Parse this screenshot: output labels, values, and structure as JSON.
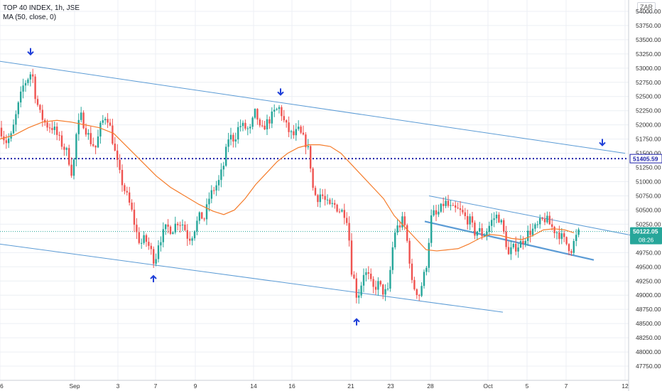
{
  "legend": {
    "symbol": "TOP 40 INDEX, 1h, JSE",
    "indicator": "MA (50, close, 0)"
  },
  "currency_badge": "ZAR",
  "price_labels": {
    "resistance_level": "51405.59",
    "last_price": "50122.05",
    "countdown": "08:26"
  },
  "colors": {
    "up": "#26a69a",
    "down": "#ef5350",
    "ma": "#f57c2b",
    "channel": "#5b9bd5",
    "arrow": "#1f3fd8",
    "dotted_level": "#1a1fa8",
    "last_price_bg": "#26a69a",
    "grid": "#eceff4"
  },
  "icons": [
    "down-arrow-marker-icon",
    "up-arrow-marker-icon"
  ],
  "chart_data": {
    "type": "candlestick",
    "title": "TOP 40 INDEX, 1h, JSE",
    "xlabel": "",
    "ylabel": "",
    "ylim": [
      47500,
      54200
    ],
    "grid": true,
    "y_ticks": [
      47750,
      48000,
      48250,
      48500,
      48750,
      49000,
      49250,
      49500,
      49750,
      50000,
      50250,
      50500,
      50750,
      51000,
      51250,
      51500,
      51750,
      52000,
      52250,
      52500,
      52750,
      53000,
      53250,
      53500,
      53750,
      54000
    ],
    "x_ticks": [
      {
        "label": "26",
        "t": 0
      },
      {
        "label": "Sep",
        "t": 105
      },
      {
        "label": "3",
        "t": 166
      },
      {
        "label": "7",
        "t": 219
      },
      {
        "label": "9",
        "t": 275
      },
      {
        "label": "14",
        "t": 357
      },
      {
        "label": "16",
        "t": 411
      },
      {
        "label": "21",
        "t": 494
      },
      {
        "label": "23",
        "t": 550
      },
      {
        "label": "28",
        "t": 606
      },
      {
        "label": "Oct",
        "t": 687
      },
      {
        "label": "5",
        "t": 742
      },
      {
        "label": "7",
        "t": 797
      },
      {
        "label": "12",
        "t": 880
      }
    ],
    "close_path": [
      [
        0,
        51950
      ],
      [
        8,
        51700
      ],
      [
        16,
        51800
      ],
      [
        25,
        52300
      ],
      [
        33,
        52700
      ],
      [
        38,
        52800
      ],
      [
        45,
        52950
      ],
      [
        50,
        52500
      ],
      [
        56,
        52200
      ],
      [
        65,
        52000
      ],
      [
        75,
        51950
      ],
      [
        85,
        51700
      ],
      [
        95,
        51500
      ],
      [
        102,
        51100
      ],
      [
        108,
        51900
      ],
      [
        114,
        52150
      ],
      [
        120,
        51950
      ],
      [
        128,
        51700
      ],
      [
        135,
        51600
      ],
      [
        142,
        52000
      ],
      [
        150,
        52200
      ],
      [
        156,
        51900
      ],
      [
        162,
        51500
      ],
      [
        168,
        51150
      ],
      [
        174,
        50900
      ],
      [
        180,
        50700
      ],
      [
        186,
        50450
      ],
      [
        192,
        50100
      ],
      [
        198,
        49900
      ],
      [
        204,
        50000
      ],
      [
        210,
        49850
      ],
      [
        215,
        49700
      ],
      [
        218,
        49550
      ],
      [
        222,
        49900
      ],
      [
        228,
        50050
      ],
      [
        235,
        50200
      ],
      [
        242,
        50150
      ],
      [
        250,
        50300
      ],
      [
        258,
        50250
      ],
      [
        265,
        50000
      ],
      [
        270,
        50050
      ],
      [
        276,
        50250
      ],
      [
        282,
        50400
      ],
      [
        288,
        50350
      ],
      [
        294,
        50700
      ],
      [
        300,
        50850
      ],
      [
        308,
        51000
      ],
      [
        315,
        51300
      ],
      [
        322,
        51800
      ],
      [
        330,
        51750
      ],
      [
        337,
        52000
      ],
      [
        345,
        51950
      ],
      [
        352,
        51900
      ],
      [
        360,
        52250
      ],
      [
        367,
        51850
      ],
      [
        373,
        52000
      ],
      [
        380,
        52100
      ],
      [
        388,
        52250
      ],
      [
        394,
        52300
      ],
      [
        400,
        52050
      ],
      [
        406,
        51900
      ],
      [
        412,
        51800
      ],
      [
        420,
        51900
      ],
      [
        427,
        51750
      ],
      [
        432,
        51650
      ],
      [
        436,
        51450
      ],
      [
        440,
        50900
      ],
      [
        446,
        50700
      ],
      [
        452,
        50800
      ],
      [
        458,
        50650
      ],
      [
        464,
        50550
      ],
      [
        470,
        50600
      ],
      [
        478,
        50500
      ],
      [
        485,
        50450
      ],
      [
        490,
        50300
      ],
      [
        494,
        49500
      ],
      [
        498,
        49300
      ],
      [
        502,
        49000
      ],
      [
        506,
        49050
      ],
      [
        512,
        49400
      ],
      [
        518,
        49350
      ],
      [
        525,
        49100
      ],
      [
        532,
        49200
      ],
      [
        540,
        49050
      ],
      [
        546,
        49050
      ],
      [
        550,
        49500
      ],
      [
        555,
        50100
      ],
      [
        560,
        50200
      ],
      [
        564,
        50250
      ],
      [
        568,
        50350
      ],
      [
        572,
        50050
      ],
      [
        576,
        49700
      ],
      [
        580,
        49200
      ],
      [
        585,
        49100
      ],
      [
        590,
        49000
      ],
      [
        595,
        49250
      ],
      [
        600,
        49500
      ],
      [
        604,
        50000
      ],
      [
        608,
        50450
      ],
      [
        614,
        50400
      ],
      [
        620,
        50500
      ],
      [
        626,
        50650
      ],
      [
        632,
        50550
      ],
      [
        638,
        50500
      ],
      [
        644,
        50500
      ],
      [
        650,
        50450
      ],
      [
        656,
        50350
      ],
      [
        662,
        50300
      ],
      [
        668,
        50100
      ],
      [
        674,
        50150
      ],
      [
        680,
        50050
      ],
      [
        686,
        50150
      ],
      [
        692,
        50300
      ],
      [
        698,
        50400
      ],
      [
        704,
        50350
      ],
      [
        708,
        50150
      ],
      [
        712,
        49950
      ],
      [
        716,
        49700
      ],
      [
        720,
        49800
      ],
      [
        726,
        49850
      ],
      [
        732,
        49900
      ],
      [
        738,
        50000
      ],
      [
        744,
        50100
      ],
      [
        750,
        50150
      ],
      [
        756,
        50200
      ],
      [
        762,
        50300
      ],
      [
        768,
        50350
      ],
      [
        774,
        50250
      ],
      [
        780,
        50150
      ],
      [
        786,
        50100
      ],
      [
        792,
        50000
      ],
      [
        798,
        49900
      ],
      [
        804,
        49800
      ],
      [
        810,
        50000
      ],
      [
        816,
        50122
      ]
    ],
    "ma_50": [
      [
        0,
        51750
      ],
      [
        20,
        51820
      ],
      [
        40,
        51950
      ],
      [
        60,
        52050
      ],
      [
        80,
        52080
      ],
      [
        100,
        52050
      ],
      [
        120,
        52000
      ],
      [
        140,
        51950
      ],
      [
        160,
        51850
      ],
      [
        180,
        51600
      ],
      [
        200,
        51350
      ],
      [
        220,
        51100
      ],
      [
        240,
        50900
      ],
      [
        260,
        50750
      ],
      [
        280,
        50600
      ],
      [
        300,
        50480
      ],
      [
        315,
        50420
      ],
      [
        330,
        50500
      ],
      [
        345,
        50700
      ],
      [
        360,
        50950
      ],
      [
        375,
        51150
      ],
      [
        390,
        51350
      ],
      [
        405,
        51500
      ],
      [
        420,
        51600
      ],
      [
        435,
        51650
      ],
      [
        450,
        51650
      ],
      [
        465,
        51620
      ],
      [
        480,
        51500
      ],
      [
        495,
        51300
      ],
      [
        510,
        51100
      ],
      [
        525,
        50900
      ],
      [
        540,
        50700
      ],
      [
        555,
        50400
      ],
      [
        570,
        50200
      ],
      [
        585,
        50000
      ],
      [
        600,
        49800
      ],
      [
        615,
        49780
      ],
      [
        630,
        49800
      ],
      [
        645,
        49820
      ],
      [
        660,
        49900
      ],
      [
        675,
        50000
      ],
      [
        690,
        50070
      ],
      [
        705,
        50050
      ],
      [
        720,
        50000
      ],
      [
        735,
        49980
      ],
      [
        750,
        50050
      ],
      [
        765,
        50150
      ],
      [
        780,
        50170
      ],
      [
        795,
        50150
      ],
      [
        808,
        50100
      ]
    ],
    "channel_upper": [
      [
        0,
        53120
      ],
      [
        880,
        51500
      ]
    ],
    "channel_lower": [
      [
        0,
        49900
      ],
      [
        708,
        48700
      ]
    ],
    "mini_upper": [
      [
        604,
        50750
      ],
      [
        932,
        49950
      ]
    ],
    "mini_lower": [
      [
        598,
        50300
      ],
      [
        836,
        49620
      ]
    ],
    "resistance_level": 51405.59,
    "last_price": 50122.05,
    "markers": [
      {
        "kind": "down",
        "t": 43,
        "y": 53290
      },
      {
        "kind": "down",
        "t": 395,
        "y": 52580
      },
      {
        "kind": "down",
        "t": 848,
        "y": 51690
      },
      {
        "kind": "up",
        "t": 216,
        "y": 49290
      },
      {
        "kind": "up",
        "t": 502,
        "y": 48530
      }
    ]
  }
}
